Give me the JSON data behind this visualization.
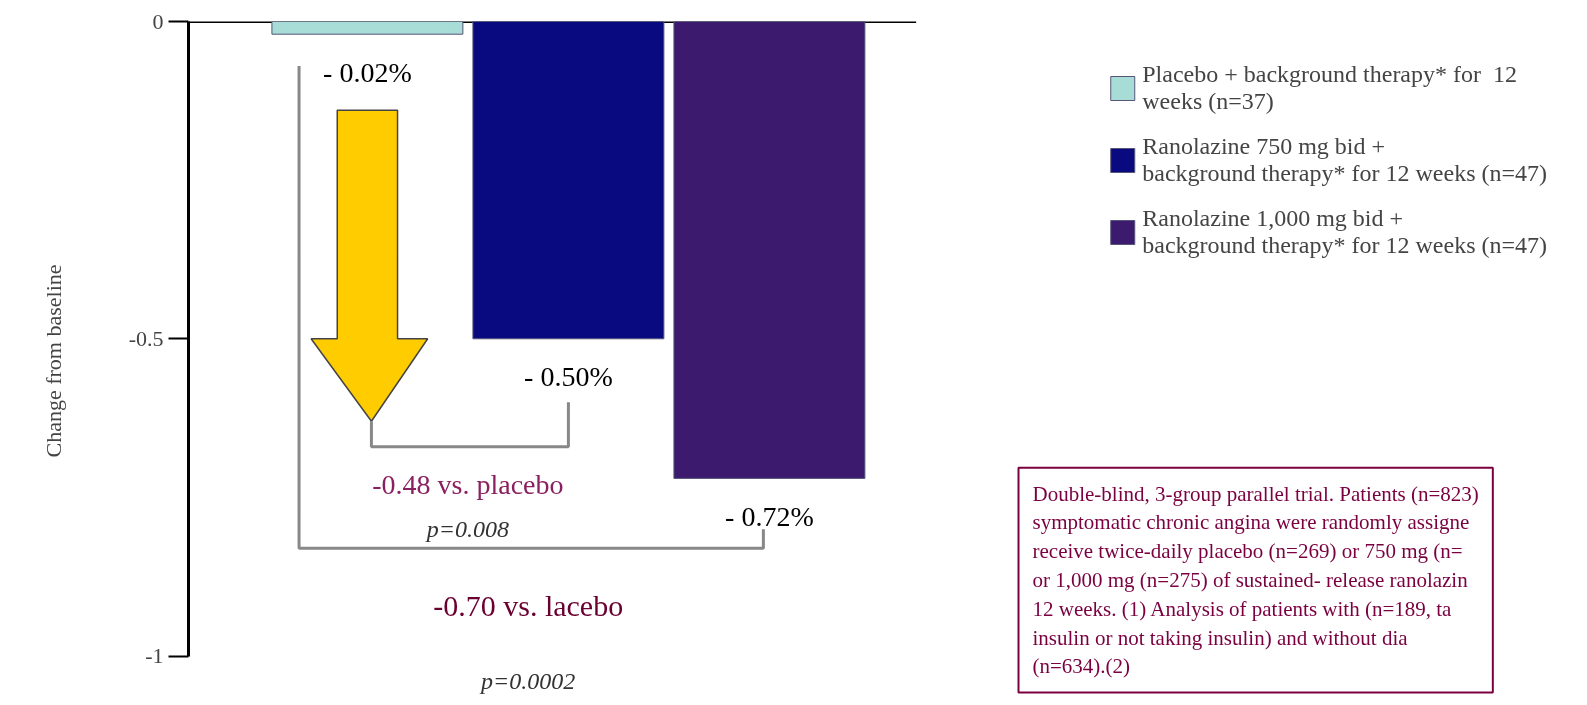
{
  "chart_data": {
    "type": "bar",
    "ylabel": "Change from baseline",
    "categories": [
      null,
      null,
      null
    ],
    "series": [
      {
        "name": "Placebo + background therapy* for  12\nweeks (n=37)",
        "color": "#a8dcd6",
        "values": [
          -0.02,
          null,
          null
        ],
        "value_labels": [
          "- 0.02%",
          null,
          null
        ]
      },
      {
        "name": "Ranolazine 750 mg bid +\nbackground therapy* for 12 weeks (n=47)",
        "color": "#0a0a80",
        "values": [
          null,
          -0.5,
          null
        ],
        "value_labels": [
          null,
          "- 0.50%",
          null
        ]
      },
      {
        "name": "Ranolazine 1,000 mg bid +\nbackground therapy* for 12 weeks (n=47)",
        "color": "#3c1a6e",
        "values": [
          null,
          null,
          -0.72
        ],
        "value_labels": [
          null,
          null,
          "- 0.72%"
        ]
      }
    ],
    "ylim": [
      -1,
      0
    ],
    "yticks": [
      {
        "value": -1,
        "label": "-1"
      },
      {
        "value": -0.5,
        "label": "-0.5"
      },
      {
        "value": 0,
        "label": "0"
      }
    ],
    "grid": false,
    "legend": "right",
    "annotations": [
      "-0.48 vs. placebo",
      "p=0.008",
      "-0.70 vs. lacebo",
      "p=0.0002",
      "Double-blind, 3-group parallel trial. Patients (n=823)\nsymptomatic chronic angina were randomly  assigne\nreceive twice-daily placebo (n=269) or  750 mg (n=\nor 1,000 mg (n=275) of sustained-  release ranolazin\n12 weeks. (1) Analysis of  patients with (n=189, ta\ninsulin or not taking  insulin) and without dia\n(n=634).(2)"
    ]
  }
}
